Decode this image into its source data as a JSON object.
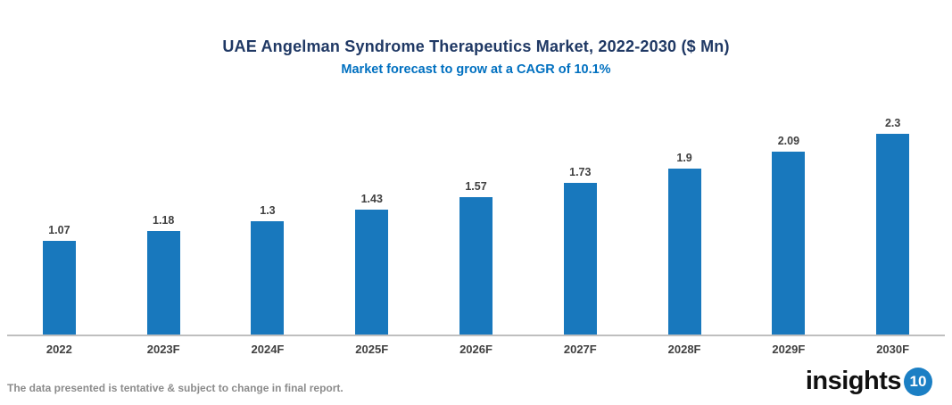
{
  "header": {
    "title": "UAE Angelman Syndrome Therapeutics Market, 2022-2030 ($ Mn)",
    "subtitle": "Market forecast to grow at a CAGR of 10.1%"
  },
  "chart_data": {
    "type": "bar",
    "categories": [
      "2022",
      "2023F",
      "2024F",
      "2025F",
      "2026F",
      "2027F",
      "2028F",
      "2029F",
      "2030F"
    ],
    "values": [
      1.07,
      1.18,
      1.3,
      1.43,
      1.57,
      1.73,
      1.9,
      2.09,
      2.3
    ],
    "title": "UAE Angelman Syndrome Therapeutics Market, 2022-2030 ($ Mn)",
    "subtitle": "Market forecast to grow at a CAGR of 10.1%",
    "xlabel": "",
    "ylabel": "",
    "ylim": [
      0,
      2.7
    ],
    "grid": false,
    "legend_position": "none",
    "value_labels_shown": true,
    "bar_color": "#1878BD"
  },
  "colors": {
    "title": "#1F3864",
    "subtitle": "#0070C0",
    "bar": "#1878BD",
    "data_label": "#404040",
    "axis_line": "#BFBFBF",
    "note": "#8C8C8C",
    "logo_badge": "#1B7FC4"
  },
  "footer": {
    "note": "The data presented is tentative & subject to change in final report.",
    "logo_text": "insights",
    "logo_badge": "10"
  }
}
